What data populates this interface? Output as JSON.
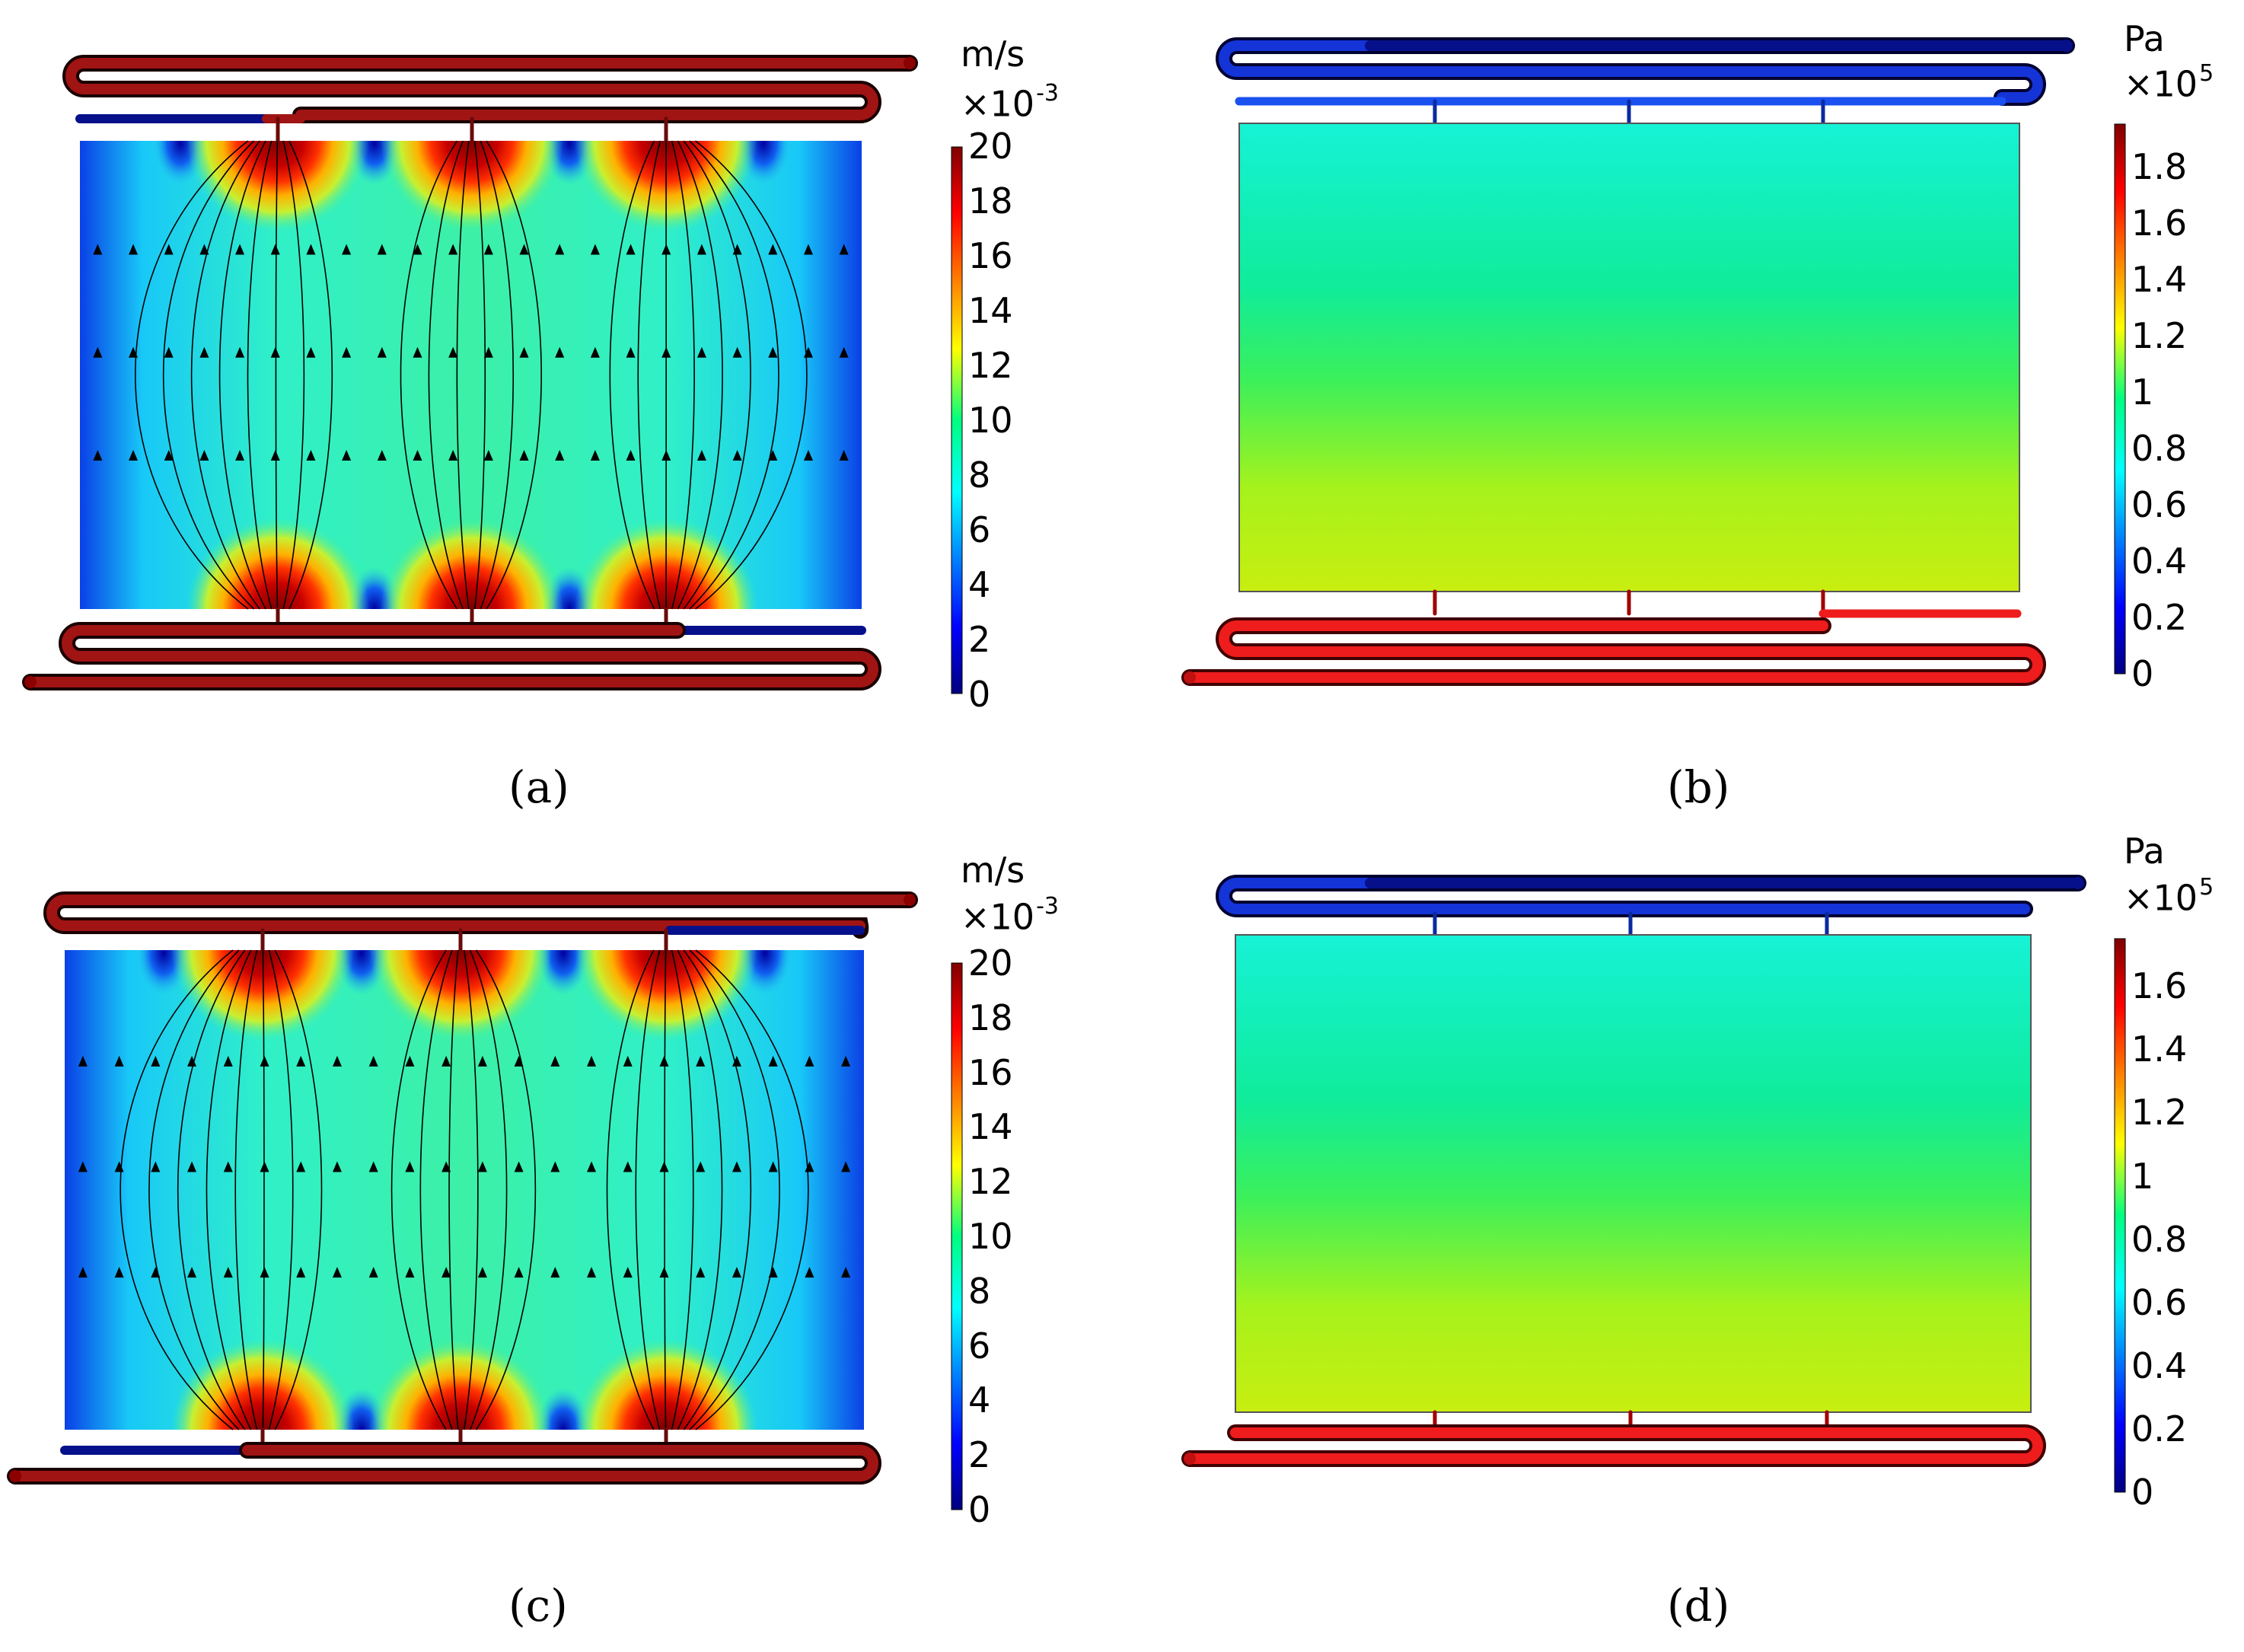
{
  "panels": [
    {
      "id": "a",
      "caption": "(a)",
      "kind": "velocity",
      "unit": "m/s",
      "multiplier_base": "×10",
      "multiplier_exp": "-3",
      "ticks": [
        "20",
        "18",
        "16",
        "14",
        "12",
        "10",
        "8",
        "6",
        "4",
        "2",
        "0"
      ]
    },
    {
      "id": "b",
      "caption": "(b)",
      "kind": "pressure",
      "unit": "Pa",
      "multiplier_base": "×10",
      "multiplier_exp": "5",
      "ticks": [
        "1.8",
        "1.6",
        "1.4",
        "1.2",
        "1",
        "0.8",
        "0.6",
        "0.4",
        "0.2",
        "0"
      ]
    },
    {
      "id": "c",
      "caption": "(c)",
      "kind": "velocity",
      "unit": "m/s",
      "multiplier_base": "×10",
      "multiplier_exp": "-3",
      "ticks": [
        "20",
        "18",
        "16",
        "14",
        "12",
        "10",
        "8",
        "6",
        "4",
        "2",
        "0"
      ]
    },
    {
      "id": "d",
      "caption": "(d)",
      "kind": "pressure",
      "unit": "Pa",
      "multiplier_base": "×10",
      "multiplier_exp": "5",
      "ticks": [
        "1.6",
        "1.4",
        "1.2",
        "1",
        "0.8",
        "0.6",
        "0.4",
        "0.2",
        "0"
      ]
    }
  ],
  "colors": {
    "pipe_red": "#ee1c1c",
    "pipe_darkred": "#8b1010",
    "pipe_blue": "#1434d8",
    "pipe_darkblue": "#06108a",
    "streamline": "#000000"
  }
}
